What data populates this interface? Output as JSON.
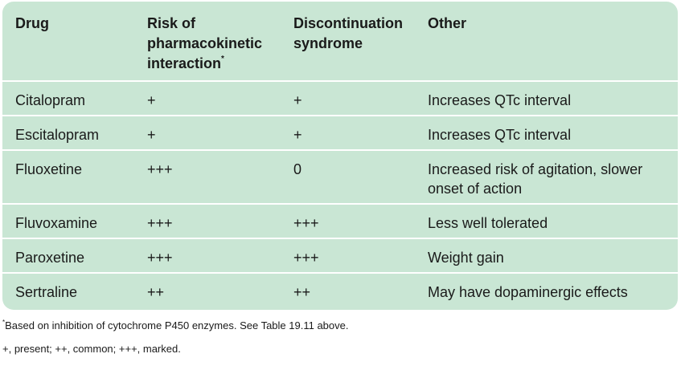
{
  "table": {
    "headers": [
      {
        "label": "Drug",
        "marker": ""
      },
      {
        "label": "Risk of pharmacokinetic interaction",
        "marker": "*"
      },
      {
        "label": "Discontinuation syndrome",
        "marker": ""
      },
      {
        "label": "Other",
        "marker": ""
      }
    ],
    "rows": [
      {
        "drug": "Citalopram",
        "interaction": "+",
        "discontinuation": "+",
        "other": "Increases QTc interval"
      },
      {
        "drug": "Escitalopram",
        "interaction": "+",
        "discontinuation": "+",
        "other": "Increases QTc interval"
      },
      {
        "drug": "Fluoxetine",
        "interaction": "+++",
        "discontinuation": "0",
        "other": "Increased risk of agitation, slower onset of action"
      },
      {
        "drug": "Fluvoxamine",
        "interaction": "+++",
        "discontinuation": "+++",
        "other": "Less well tolerated"
      },
      {
        "drug": "Paroxetine",
        "interaction": "+++",
        "discontinuation": "+++",
        "other": "Weight gain"
      },
      {
        "drug": "Sertraline",
        "interaction": "++",
        "discontinuation": "++",
        "other": "May have dopaminergic effects"
      }
    ]
  },
  "footnotes": {
    "marker": "*",
    "note1": "Based on inhibition of cytochrome P450 enzymes. See Table 19.11 above.",
    "note2": "+, present; ++, common; +++, marked."
  },
  "colors": {
    "panel_background": "#c9e6d4",
    "row_divider": "#ffffff",
    "text": "#1a1a1a"
  }
}
